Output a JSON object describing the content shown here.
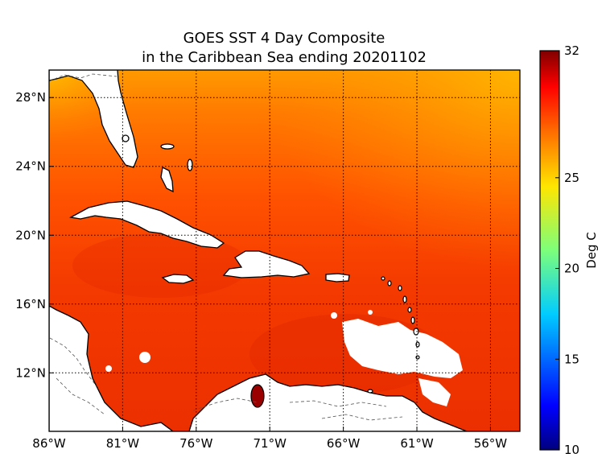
{
  "title": {
    "line1": "GOES SST 4 Day Composite",
    "line2": "in the Caribbean Sea ending 20201102"
  },
  "map": {
    "region": "Caribbean Sea",
    "projection": "lon-lat",
    "lon_range": [
      -86,
      -54
    ],
    "lat_range": [
      8.6,
      29.6
    ],
    "grid": true,
    "lat_ticks": [
      {
        "value": 28,
        "label": "28°N"
      },
      {
        "value": 24,
        "label": "24°N"
      },
      {
        "value": 20,
        "label": "20°N"
      },
      {
        "value": 16,
        "label": "16°N"
      },
      {
        "value": 12,
        "label": "12°N"
      }
    ],
    "lon_ticks": [
      {
        "value": -86,
        "label": "86°W"
      },
      {
        "value": -81,
        "label": "81°W"
      },
      {
        "value": -76,
        "label": "76°W"
      },
      {
        "value": -71,
        "label": "71°W"
      },
      {
        "value": -66,
        "label": "66°W"
      },
      {
        "value": -61,
        "label": "61°W"
      },
      {
        "value": -56,
        "label": "56°W"
      }
    ]
  },
  "colorbar": {
    "label": "Deg C",
    "min": 10,
    "max": 32,
    "ticks": [
      {
        "value": 32,
        "label": "32"
      },
      {
        "value": 25,
        "label": "25"
      },
      {
        "value": 20,
        "label": "20"
      },
      {
        "value": 15,
        "label": "15"
      },
      {
        "value": 10,
        "label": "10"
      }
    ],
    "colormap": "jet"
  },
  "colors": {
    "sst_warm_north": "#ffaa00",
    "sst_mid": "#ff5a00",
    "sst_caribbean": "#f43a00",
    "land": "#ffffff",
    "coast": "#000000",
    "grid": "#000000"
  }
}
